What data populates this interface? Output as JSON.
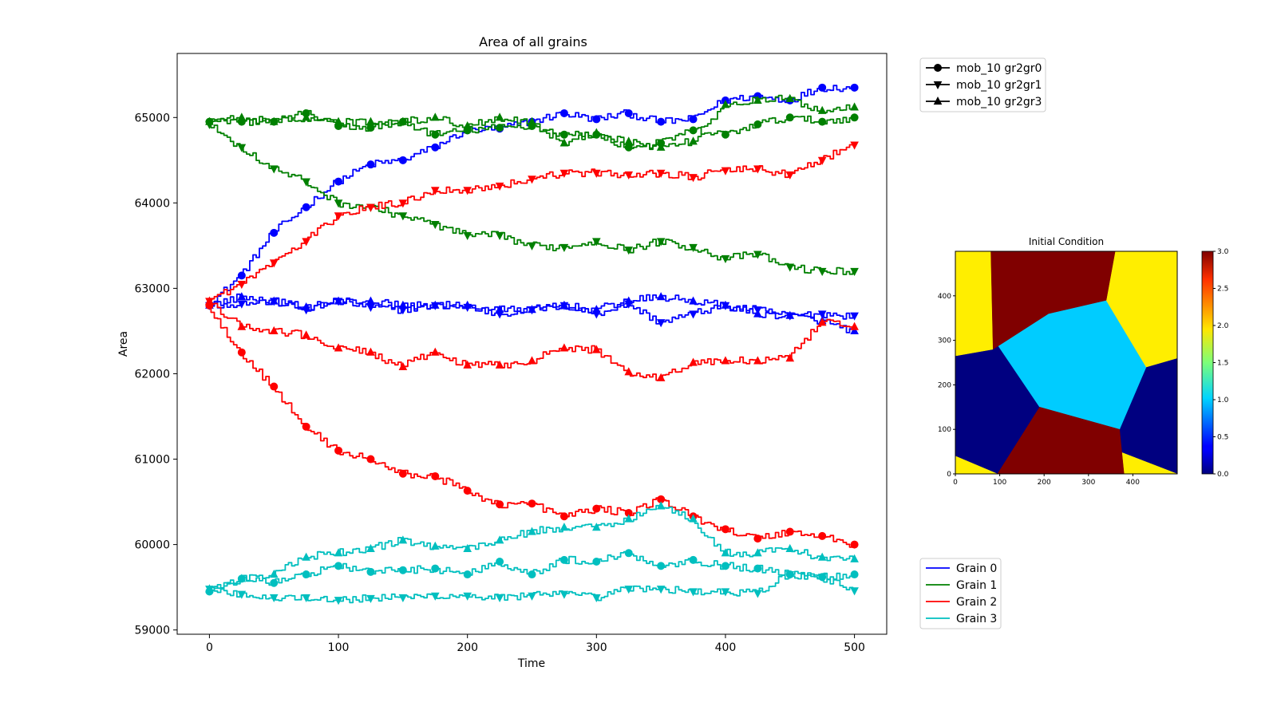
{
  "chart_data": [
    {
      "type": "line",
      "title": "Area of all grains",
      "xlabel": "Time",
      "ylabel": "Area",
      "xlim": [
        -25,
        525
      ],
      "ylim": [
        58950,
        65750
      ],
      "xticks": [
        "0",
        "100",
        "200",
        "300",
        "400",
        "500"
      ],
      "yticks": [
        "59000",
        "60000",
        "61000",
        "62000",
        "63000",
        "64000",
        "65000"
      ],
      "grid": false,
      "x": [
        0,
        25,
        50,
        75,
        100,
        125,
        150,
        175,
        200,
        225,
        250,
        275,
        300,
        325,
        350,
        375,
        400,
        425,
        450,
        475,
        500
      ],
      "series": [
        {
          "name": "Grain 0",
          "variant": "mob_10 gr2gr0",
          "color": "#0000ff",
          "marker": "circle",
          "values": [
            62800,
            63150,
            63650,
            63950,
            64250,
            64450,
            64500,
            64650,
            64850,
            64870,
            64950,
            65050,
            64980,
            65050,
            64950,
            64980,
            65200,
            65250,
            65200,
            65350,
            65350
          ]
        },
        {
          "name": "Grain 0",
          "variant": "mob_10 gr2gr1",
          "color": "#0000ff",
          "marker": "triangle-down",
          "values": [
            62800,
            62820,
            62850,
            62750,
            62850,
            62780,
            62750,
            62800,
            62780,
            62700,
            62750,
            62800,
            62700,
            62820,
            62600,
            62700,
            62800,
            62750,
            62680,
            62700,
            62680
          ]
        },
        {
          "name": "Grain 0",
          "variant": "mob_10 gr2gr3",
          "color": "#0000ff",
          "marker": "triangle-up",
          "values": [
            62800,
            62900,
            62850,
            62780,
            62850,
            62850,
            62800,
            62800,
            62800,
            62750,
            62750,
            62800,
            62750,
            62850,
            62900,
            62850,
            62800,
            62700,
            62680,
            62620,
            62500
          ]
        },
        {
          "name": "Grain 1",
          "variant": "mob_10 gr2gr0",
          "color": "#008000",
          "marker": "circle",
          "values": [
            64950,
            64950,
            64950,
            65050,
            64900,
            64880,
            64950,
            64800,
            64850,
            64880,
            64900,
            64800,
            64800,
            64650,
            64700,
            64850,
            64800,
            64920,
            65000,
            64950,
            65000
          ]
        },
        {
          "name": "Grain 1",
          "variant": "mob_10 gr2gr1",
          "color": "#008000",
          "marker": "triangle-down",
          "values": [
            64920,
            64650,
            64400,
            64250,
            64000,
            63950,
            63850,
            63750,
            63620,
            63620,
            63500,
            63480,
            63550,
            63450,
            63550,
            63480,
            63350,
            63400,
            63250,
            63200,
            63200
          ]
        },
        {
          "name": "Grain 1",
          "variant": "mob_10 gr2gr3",
          "color": "#008000",
          "marker": "triangle-up",
          "values": [
            64950,
            65000,
            64950,
            65000,
            64950,
            64950,
            64950,
            65000,
            64900,
            65000,
            64950,
            64700,
            64820,
            64720,
            64650,
            64720,
            65150,
            65200,
            65220,
            65080,
            65120
          ]
        },
        {
          "name": "Grain 2",
          "variant": "mob_10 gr2gr0",
          "color": "#ff0000",
          "marker": "circle",
          "values": [
            62800,
            62250,
            61850,
            61380,
            61100,
            61000,
            60830,
            60800,
            60630,
            60470,
            60480,
            60330,
            60420,
            60370,
            60530,
            60330,
            60180,
            60070,
            60150,
            60100,
            60000
          ]
        },
        {
          "name": "Grain 2",
          "variant": "mob_10 gr2gr1",
          "color": "#ff0000",
          "marker": "triangle-down",
          "values": [
            62850,
            63050,
            63300,
            63550,
            63850,
            63950,
            64000,
            64150,
            64150,
            64200,
            64280,
            64350,
            64350,
            64330,
            64350,
            64300,
            64380,
            64400,
            64330,
            64500,
            64680
          ]
        },
        {
          "name": "Grain 2",
          "variant": "mob_10 gr2gr3",
          "color": "#ff0000",
          "marker": "triangle-up",
          "values": [
            62850,
            62550,
            62500,
            62450,
            62300,
            62250,
            62080,
            62250,
            62100,
            62100,
            62150,
            62300,
            62280,
            62020,
            61950,
            62130,
            62150,
            62150,
            62180,
            62600,
            62550
          ]
        },
        {
          "name": "Grain 3",
          "variant": "mob_10 gr2gr0",
          "color": "#00bfbf",
          "marker": "circle",
          "values": [
            59450,
            59600,
            59550,
            59650,
            59750,
            59680,
            59700,
            59720,
            59650,
            59800,
            59650,
            59820,
            59800,
            59900,
            59750,
            59820,
            59750,
            59720,
            59650,
            59620,
            59650
          ]
        },
        {
          "name": "Grain 3",
          "variant": "mob_10 gr2gr1",
          "color": "#00bfbf",
          "marker": "triangle-down",
          "values": [
            59480,
            59420,
            59380,
            59380,
            59350,
            59370,
            59380,
            59400,
            59400,
            59380,
            59400,
            59420,
            59380,
            59480,
            59480,
            59450,
            59450,
            59430,
            59650,
            59620,
            59460
          ]
        },
        {
          "name": "Grain 3",
          "variant": "mob_10 gr2gr3",
          "color": "#00bfbf",
          "marker": "triangle-up",
          "values": [
            59480,
            59600,
            59650,
            59850,
            59900,
            59950,
            60050,
            59980,
            59950,
            60050,
            60150,
            60200,
            60200,
            60300,
            60450,
            60300,
            59900,
            59900,
            59950,
            59850,
            59830
          ]
        }
      ],
      "legends": [
        {
          "placement": "upper-right-outside",
          "entries": [
            {
              "label": "mob_10 gr2gr0",
              "marker": "circle"
            },
            {
              "label": "mob_10 gr2gr1",
              "marker": "triangle-down"
            },
            {
              "label": "mob_10 gr2gr3",
              "marker": "triangle-up"
            }
          ]
        },
        {
          "placement": "lower-right-outside",
          "entries": [
            {
              "label": "Grain 0",
              "color": "#0000ff"
            },
            {
              "label": "Grain 1",
              "color": "#008000"
            },
            {
              "label": "Grain 2",
              "color": "#ff0000"
            },
            {
              "label": "Grain 3",
              "color": "#00bfbf"
            }
          ]
        }
      ]
    },
    {
      "type": "heatmap",
      "title": "Initial Condition",
      "xlim": [
        0,
        500
      ],
      "ylim": [
        0,
        500
      ],
      "xticks": [
        "0",
        "100",
        "200",
        "300",
        "400"
      ],
      "yticks": [
        "0",
        "100",
        "200",
        "300",
        "400"
      ],
      "colorbar": {
        "range": [
          0.0,
          3.0
        ],
        "ticks": [
          "0.0",
          "0.5",
          "1.0",
          "1.5",
          "2.0",
          "2.5",
          "3.0"
        ],
        "colormap": "jet"
      },
      "regions": [
        {
          "grain": 0,
          "color": "#000080",
          "polygons": [
            [
              [
                0,
                40
              ],
              [
                0,
                265
              ],
              [
                95,
                290
              ],
              [
                190,
                150
              ],
              [
                95,
                0
              ],
              [
                0,
                0
              ]
            ],
            [
              [
                500,
                260
              ],
              [
                500,
                0
              ],
              [
                380,
                0
              ],
              [
                370,
                100
              ],
              [
                430,
                240
              ]
            ]
          ]
        },
        {
          "grain": 1,
          "color": "#00ccff",
          "polygons": [
            [
              [
                95,
                290
              ],
              [
                210,
                360
              ],
              [
                340,
                390
              ],
              [
                430,
                240
              ],
              [
                370,
                100
              ],
              [
                190,
                150
              ]
            ]
          ]
        },
        {
          "grain": 2,
          "color": "#ffee00",
          "polygons": [
            [
              [
                0,
                500
              ],
              [
                80,
                500
              ],
              [
                85,
                280
              ],
              [
                0,
                265
              ]
            ],
            [
              [
                340,
                390
              ],
              [
                360,
                500
              ],
              [
                500,
                500
              ],
              [
                500,
                260
              ],
              [
                430,
                240
              ]
            ],
            [
              [
                0,
                0
              ],
              [
                0,
                40
              ],
              [
                95,
                0
              ]
            ],
            [
              [
                380,
                0
              ],
              [
                370,
                50
              ],
              [
                500,
                0
              ]
            ]
          ]
        },
        {
          "grain": 3,
          "color": "#800000",
          "polygons": [
            [
              [
                80,
                500
              ],
              [
                360,
                500
              ],
              [
                340,
                390
              ],
              [
                210,
                360
              ],
              [
                85,
                280
              ]
            ],
            [
              [
                95,
                0
              ],
              [
                380,
                0
              ],
              [
                370,
                100
              ],
              [
                190,
                150
              ]
            ]
          ]
        }
      ]
    }
  ]
}
